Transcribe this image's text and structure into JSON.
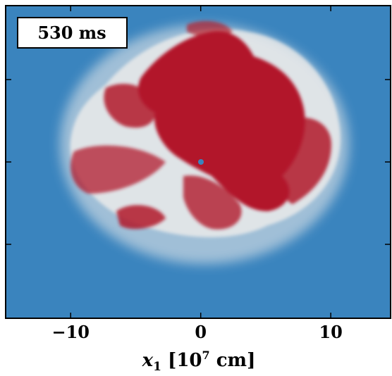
{
  "chart_data": {
    "type": "image",
    "annotation": "530 ms",
    "xlabel": {
      "var": "x",
      "sub": "1",
      "pre": " [10",
      "sup": "7",
      "post": " cm]"
    },
    "xlim": [
      -15,
      14.6
    ],
    "xticks": [
      -10,
      0,
      10
    ],
    "xtick_labels": [
      "−10",
      "0",
      "10"
    ],
    "colormap": {
      "low": "#3a84be",
      "mid": "#f4f0ec",
      "high": "#b2182b"
    }
  }
}
